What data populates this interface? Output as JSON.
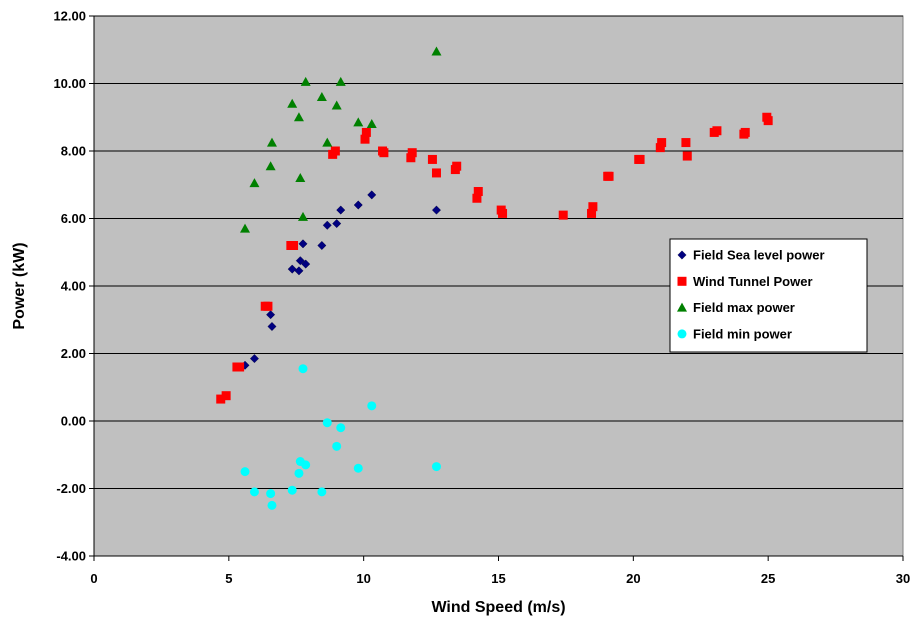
{
  "chart_data": {
    "type": "scatter",
    "title": "",
    "xlabel": "Wind Speed (m/s)",
    "ylabel": "Power (kW)",
    "xlim": [
      0,
      30
    ],
    "ylim": [
      -4,
      12
    ],
    "x_ticks": [
      0,
      5,
      10,
      15,
      20,
      25,
      30
    ],
    "x_tick_labels": [
      "0",
      "5",
      "10",
      "15",
      "20",
      "25",
      "30"
    ],
    "y_ticks": [
      -4,
      -2,
      0,
      2,
      4,
      6,
      8,
      10,
      12
    ],
    "y_tick_labels": [
      "-4.00",
      "-2.00",
      "0.00",
      "2.00",
      "4.00",
      "6.00",
      "8.00",
      "10.00",
      "12.00"
    ],
    "grid": "horizontal",
    "plot_background": "#c0c0c0",
    "legend_position": "right",
    "series": [
      {
        "name": "Field Sea level power",
        "marker": "diamond",
        "color": "#000080",
        "points": [
          [
            5.6,
            1.65
          ],
          [
            5.95,
            1.85
          ],
          [
            6.55,
            3.15
          ],
          [
            6.6,
            2.8
          ],
          [
            7.35,
            4.5
          ],
          [
            7.6,
            4.45
          ],
          [
            7.65,
            4.75
          ],
          [
            7.75,
            5.25
          ],
          [
            7.85,
            4.65
          ],
          [
            8.45,
            5.2
          ],
          [
            8.65,
            5.8
          ],
          [
            9.0,
            5.85
          ],
          [
            9.15,
            6.25
          ],
          [
            9.8,
            6.4
          ],
          [
            10.3,
            6.7
          ],
          [
            12.7,
            6.25
          ]
        ]
      },
      {
        "name": "Wind Tunnel Power",
        "marker": "square",
        "color": "#ff0000",
        "points": [
          [
            4.7,
            0.65
          ],
          [
            4.9,
            0.75
          ],
          [
            5.3,
            1.6
          ],
          [
            5.4,
            1.6
          ],
          [
            6.35,
            3.4
          ],
          [
            6.45,
            3.4
          ],
          [
            7.3,
            5.2
          ],
          [
            7.4,
            5.2
          ],
          [
            8.85,
            7.9
          ],
          [
            8.95,
            8.0
          ],
          [
            10.05,
            8.35
          ],
          [
            10.1,
            8.55
          ],
          [
            10.7,
            8.0
          ],
          [
            10.75,
            7.95
          ],
          [
            11.75,
            7.8
          ],
          [
            11.8,
            7.95
          ],
          [
            12.55,
            7.75
          ],
          [
            12.7,
            7.35
          ],
          [
            13.4,
            7.45
          ],
          [
            13.45,
            7.55
          ],
          [
            14.2,
            6.6
          ],
          [
            14.25,
            6.8
          ],
          [
            15.1,
            6.25
          ],
          [
            15.15,
            6.15
          ],
          [
            17.4,
            6.1
          ],
          [
            18.45,
            6.15
          ],
          [
            18.5,
            6.35
          ],
          [
            19.05,
            7.25
          ],
          [
            19.1,
            7.25
          ],
          [
            20.2,
            7.75
          ],
          [
            20.25,
            7.75
          ],
          [
            21.0,
            8.1
          ],
          [
            21.05,
            8.25
          ],
          [
            21.95,
            8.25
          ],
          [
            22.0,
            7.85
          ],
          [
            23.0,
            8.55
          ],
          [
            23.1,
            8.6
          ],
          [
            24.1,
            8.5
          ],
          [
            24.15,
            8.55
          ],
          [
            24.95,
            9.0
          ],
          [
            25.0,
            8.9
          ]
        ]
      },
      {
        "name": "Field max power",
        "marker": "triangle",
        "color": "#008000",
        "points": [
          [
            5.6,
            5.7
          ],
          [
            5.95,
            7.05
          ],
          [
            6.55,
            7.55
          ],
          [
            6.6,
            8.25
          ],
          [
            7.35,
            9.4
          ],
          [
            7.6,
            9.0
          ],
          [
            7.65,
            7.2
          ],
          [
            7.75,
            6.05
          ],
          [
            7.85,
            10.05
          ],
          [
            8.45,
            9.6
          ],
          [
            8.65,
            8.25
          ],
          [
            9.0,
            9.35
          ],
          [
            9.15,
            10.05
          ],
          [
            9.8,
            8.85
          ],
          [
            10.3,
            8.8
          ],
          [
            12.7,
            10.95
          ]
        ]
      },
      {
        "name": "Field min power",
        "marker": "circle",
        "color": "#00ffff",
        "points": [
          [
            5.6,
            -1.5
          ],
          [
            5.95,
            -2.1
          ],
          [
            6.55,
            -2.15
          ],
          [
            6.6,
            -2.5
          ],
          [
            7.35,
            -2.05
          ],
          [
            7.6,
            -1.55
          ],
          [
            7.65,
            -1.2
          ],
          [
            7.75,
            1.55
          ],
          [
            7.85,
            -1.3
          ],
          [
            8.45,
            -2.1
          ],
          [
            8.65,
            -0.05
          ],
          [
            9.0,
            -0.75
          ],
          [
            9.15,
            -0.2
          ],
          [
            9.8,
            -1.4
          ],
          [
            10.3,
            0.45
          ],
          [
            12.7,
            -1.35
          ]
        ]
      }
    ]
  }
}
